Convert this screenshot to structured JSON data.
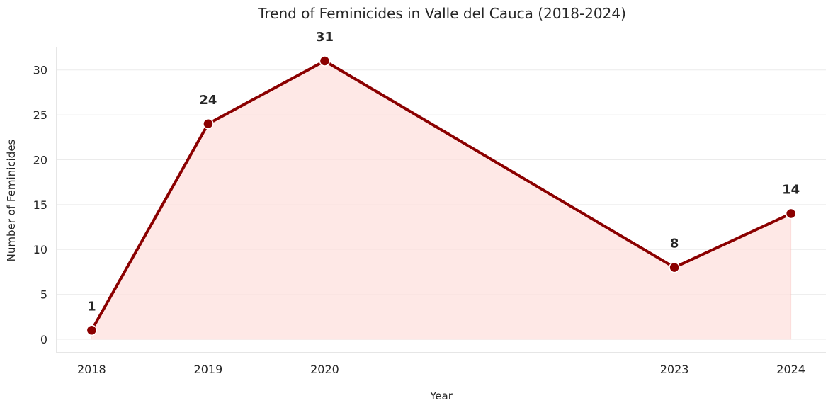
{
  "chart_data": {
    "type": "line",
    "title": "Trend of Feminicides in Valle del Cauca (2018-2024)",
    "xlabel": "Year",
    "ylabel": "Number of Feminicides",
    "x": [
      2018,
      2019,
      2020,
      2023,
      2024
    ],
    "x_tick_labels": [
      "2018",
      "2019",
      "2020",
      "2023",
      "2024"
    ],
    "series": [
      {
        "values": [
          1,
          24,
          31,
          8,
          14
        ],
        "data_labels": [
          "1",
          "24",
          "31",
          "8",
          "14"
        ]
      }
    ],
    "y_ticks": [
      0,
      5,
      10,
      15,
      20,
      25,
      30
    ],
    "y_tick_labels": [
      "0",
      "5",
      "10",
      "15",
      "20",
      "25",
      "30"
    ],
    "xlim": [
      2017.7,
      2024.3
    ],
    "ylim": [
      -1.5,
      32.5
    ],
    "grid": "horizontal",
    "legend": "none",
    "colors": {
      "line": "#8b0000",
      "fill": "#fde0de",
      "grid": "#ebebeb",
      "spine": "#cccccc",
      "text": "#262626"
    }
  }
}
